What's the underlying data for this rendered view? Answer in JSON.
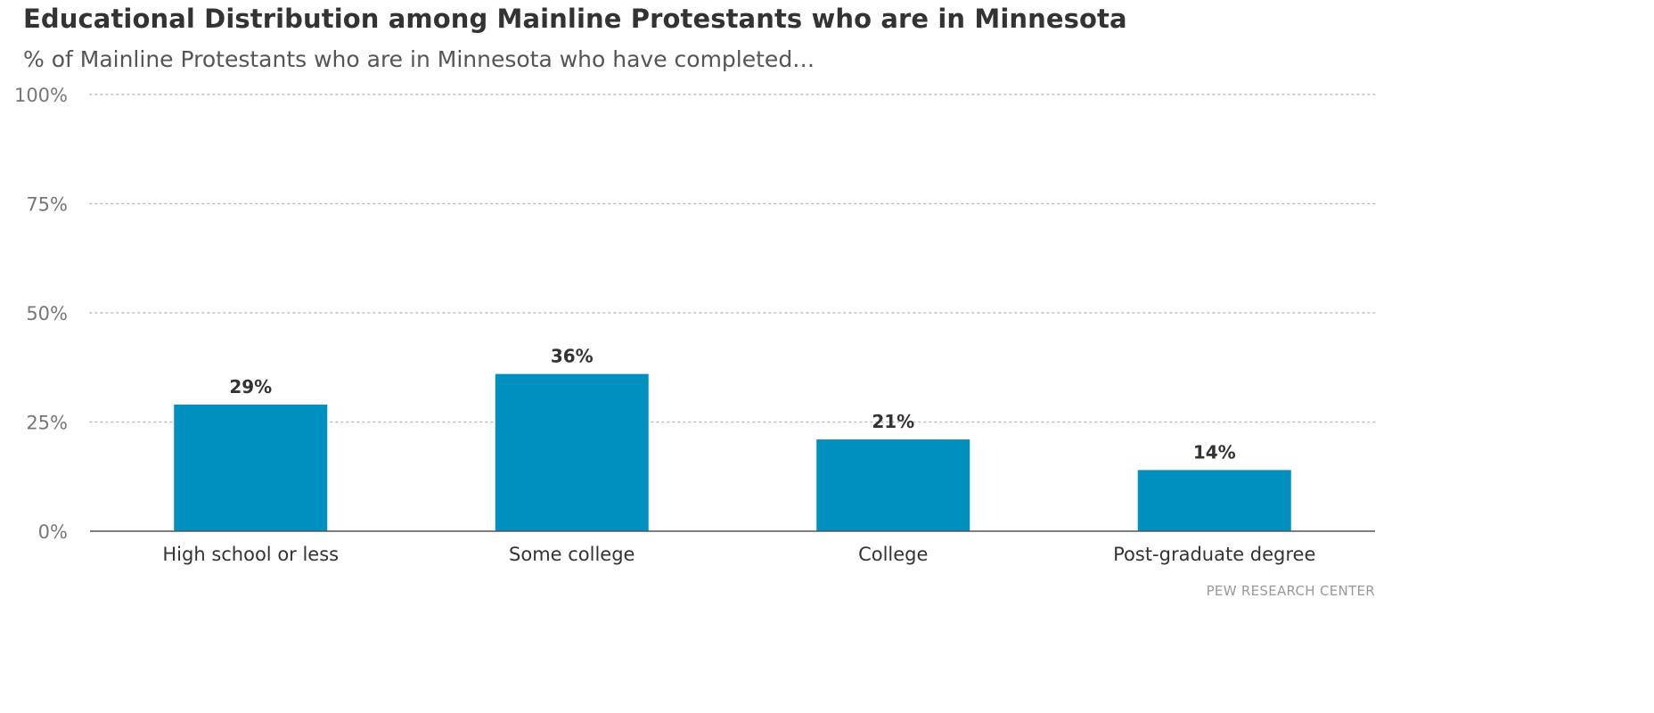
{
  "header": {
    "title": "Educational Distribution among Mainline Protestants who are in Minnesota",
    "subtitle": "% of Mainline Protestants who are in Minnesota who have completed…"
  },
  "footer": {
    "source": "PEW RESEARCH CENTER"
  },
  "chart_data": {
    "type": "bar",
    "categories": [
      "High school or less",
      "Some college",
      "College",
      "Post-graduate degree"
    ],
    "values": [
      29,
      36,
      21,
      14
    ],
    "value_labels": [
      "29%",
      "36%",
      "21%",
      "14%"
    ],
    "ylim": [
      0,
      100
    ],
    "yticks": [
      0,
      25,
      50,
      75,
      100
    ],
    "ytick_labels": [
      "0%",
      "25%",
      "50%",
      "75%",
      "100%"
    ],
    "grid": true,
    "bar_color": "#0090c0"
  }
}
